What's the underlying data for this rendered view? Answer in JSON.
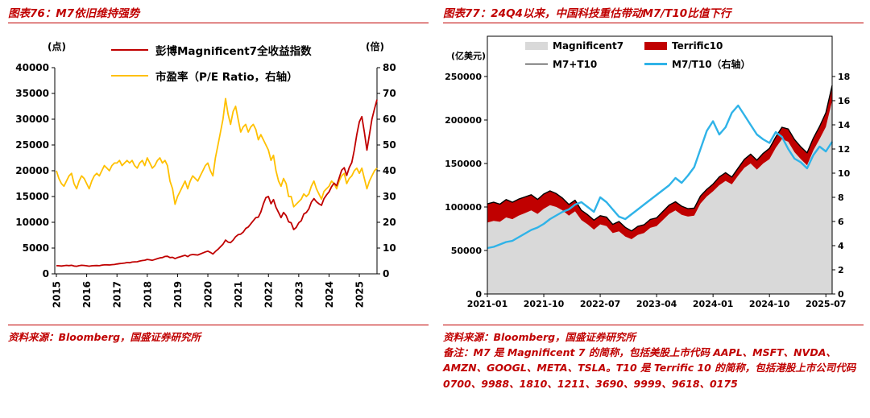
{
  "panels": {
    "left": {
      "title": "图表76：M7依旧维持强势",
      "source": "资料来源：Bloomberg，国盛证券研究所"
    },
    "right": {
      "title": "图表77：24Q4以来，中国科技重估带动M7/T10比值下行",
      "source": "资料来源：Bloomberg，国盛证券研究所",
      "note": "备注：M7 是 Magnificent 7 的简称，包括美股上市代码 AAPL、MSFT、NVDA、AMZN、GOOGL、META、TSLA。T10 是 Terrific 10 的简称，包括港股上市公司代码 0700、9988、1810、1211、3690、9999、9618、0175"
    }
  },
  "colors": {
    "accent_red": "#c00000",
    "m7_index_line": "#c00000",
    "pe_line": "#ffc000",
    "m7_area": "#d9d9d9",
    "t10_band": "#c00000",
    "total_line": "#000000",
    "ratio_line": "#2fb3e8"
  },
  "chart_data": [
    {
      "type": "line",
      "title": "图表76：M7依旧维持强势",
      "x_unit": "month",
      "x_start": "2015-01",
      "x_end": "2025-08",
      "x_ticks": [
        "2015",
        "2016",
        "2017",
        "2018",
        "2019",
        "2020",
        "2021",
        "2022",
        "2023",
        "2024",
        "2025"
      ],
      "grid": false,
      "legend_position": "top-center",
      "left_axis": {
        "label": "(点)",
        "min": 0,
        "max": 40000,
        "step": 5000
      },
      "right_axis": {
        "label": "(倍)",
        "min": 0,
        "max": 80,
        "step": 10
      },
      "series": [
        {
          "name": "彭博Magnificent7全收益指数",
          "axis": "left",
          "color": "#c00000",
          "values": [
            1600,
            1560,
            1520,
            1580,
            1640,
            1600,
            1660,
            1520,
            1470,
            1580,
            1650,
            1620,
            1560,
            1490,
            1570,
            1590,
            1610,
            1580,
            1680,
            1730,
            1750,
            1720,
            1780,
            1820,
            1900,
            1980,
            2030,
            2100,
            2180,
            2150,
            2280,
            2330,
            2350,
            2480,
            2580,
            2640,
            2800,
            2720,
            2620,
            2780,
            2950,
            3100,
            3150,
            3380,
            3400,
            3150,
            3200,
            2950,
            3150,
            3300,
            3450,
            3600,
            3350,
            3650,
            3750,
            3700,
            3650,
            3850,
            4050,
            4250,
            4400,
            4150,
            3850,
            4350,
            4750,
            5250,
            5750,
            6550,
            6150,
            6050,
            6550,
            7200,
            7600,
            7700,
            8100,
            8800,
            9100,
            9700,
            10300,
            10900,
            11000,
            12000,
            13600,
            14800,
            15000,
            13600,
            14400,
            12900,
            11900,
            10900,
            11900,
            11300,
            10100,
            9900,
            8600,
            9000,
            9900,
            10300,
            11600,
            11900,
            12600,
            13900,
            14600,
            14000,
            13600,
            13300,
            14600,
            15300,
            15900,
            16900,
            17600,
            17100,
            18600,
            20100,
            20600,
            19100,
            20600,
            21600,
            24000,
            27000,
            29500,
            30500,
            27500,
            24000,
            27000,
            30000,
            32000,
            33800
          ]
        },
        {
          "name": "市盈率（P/E Ratio，右轴）",
          "axis": "right",
          "color": "#ffc000",
          "values": [
            40,
            37,
            35,
            34,
            36,
            38,
            39,
            35,
            33,
            36,
            38,
            37,
            35,
            33,
            36,
            38,
            39,
            38,
            40,
            42,
            41,
            40,
            42,
            43,
            43,
            44,
            42,
            43,
            44,
            43,
            44,
            42,
            41,
            43,
            44,
            42,
            45,
            43,
            41,
            42,
            44,
            45,
            43,
            44,
            42,
            36,
            33,
            27,
            30,
            32,
            34,
            36,
            33,
            36,
            38,
            37,
            36,
            38,
            40,
            42,
            43,
            40,
            38,
            45,
            50,
            55,
            60,
            68,
            62,
            58,
            63,
            65,
            60,
            55,
            57,
            58,
            55,
            57,
            58,
            56,
            52,
            54,
            52,
            50,
            48,
            44,
            46,
            40,
            36,
            34,
            37,
            35,
            30,
            30,
            26,
            27,
            28,
            29,
            31,
            30,
            31,
            34,
            36,
            33,
            31,
            29,
            32,
            33,
            34,
            36,
            35,
            33,
            36,
            38,
            39,
            35,
            37,
            38,
            40,
            41,
            39,
            41,
            37,
            33,
            36,
            38,
            40,
            41
          ]
        }
      ]
    },
    {
      "type": "area",
      "title": "图表77：24Q4以来，中国科技重估带动M7/T10比值下行",
      "x_unit": "month",
      "x_start": "2021-01",
      "x_end": "2025-08",
      "x_ticks": [
        "2021-01",
        "2021-10",
        "2022-07",
        "2023-04",
        "2024-01",
        "2024-10",
        "2025-07"
      ],
      "grid": false,
      "legend_position": "top-inside",
      "left_axis": {
        "label": "(亿美元)",
        "min": 0,
        "max": 250000,
        "step": 50000
      },
      "right_axis": {
        "label": "",
        "min": 0,
        "max": 18,
        "step": 2
      },
      "series": [
        {
          "name": "Magnificent7",
          "kind": "area",
          "axis": "left",
          "color": "#d9d9d9",
          "values": [
            82000,
            84000,
            83000,
            88000,
            86000,
            90000,
            93000,
            96000,
            92000,
            98000,
            102000,
            100000,
            96000,
            90000,
            95000,
            85000,
            80000,
            74000,
            80000,
            78000,
            70000,
            72000,
            66000,
            63000,
            68000,
            70000,
            76000,
            78000,
            85000,
            92000,
            96000,
            91000,
            89000,
            90000,
            104000,
            112000,
            118000,
            125000,
            130000,
            126000,
            136000,
            145000,
            150000,
            143000,
            150000,
            155000,
            168000,
            178000,
            175000,
            163000,
            155000,
            148000,
            165000,
            178000,
            192000,
            222000
          ]
        },
        {
          "name": "Terrific10",
          "kind": "stacked-band",
          "axis": "left",
          "color": "#c00000",
          "values": [
            21600,
            21500,
            20200,
            20500,
            19500,
            19100,
            18600,
            18100,
            16700,
            16900,
            16500,
            15400,
            14100,
            12900,
            12800,
            11200,
            11100,
            10900,
            10000,
            10300,
            10000,
            11300,
            10600,
            9500,
            9700,
            9500,
            9700,
            9500,
            9900,
            10200,
            10000,
            9900,
            9100,
            8600,
            8700,
            8300,
            8300,
            9500,
            9400,
            8400,
            8700,
            9800,
            10700,
            10800,
            11700,
            12400,
            12500,
            13700,
            14600,
            14600,
            14200,
            14200,
            14300,
            14600,
            16300,
            17600
          ]
        },
        {
          "name": "M7+T10",
          "kind": "line",
          "axis": "left",
          "color": "#000000",
          "derived": "sum of Magnificent7 and Terrific10"
        },
        {
          "name": "M7/T10（右轴）",
          "kind": "line",
          "axis": "right",
          "color": "#2fb3e8",
          "values": [
            3.8,
            3.9,
            4.1,
            4.3,
            4.4,
            4.7,
            5.0,
            5.3,
            5.5,
            5.8,
            6.2,
            6.5,
            6.8,
            7.0,
            7.4,
            7.6,
            7.2,
            6.8,
            8.0,
            7.6,
            7.0,
            6.4,
            6.2,
            6.6,
            7.0,
            7.4,
            7.8,
            8.2,
            8.6,
            9.0,
            9.6,
            9.2,
            9.8,
            10.5,
            12.0,
            13.5,
            14.3,
            13.2,
            13.8,
            15.0,
            15.6,
            14.8,
            14.0,
            13.2,
            12.8,
            12.5,
            13.4,
            13.0,
            12.0,
            11.2,
            10.9,
            10.4,
            11.5,
            12.2,
            11.8,
            12.6
          ]
        }
      ]
    }
  ]
}
